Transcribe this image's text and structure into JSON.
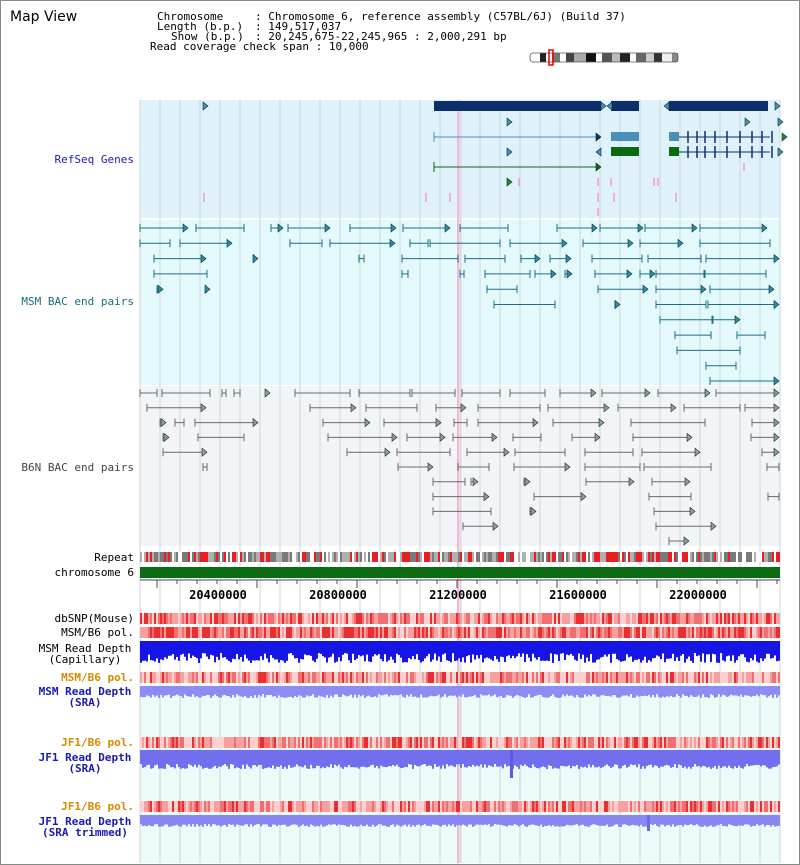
{
  "title": "Map View",
  "info": {
    "chromosome_label": "Chromosome",
    "chromosome_value": "Chromosome 6, reference assembly (C57BL/6J) (Build 37)",
    "length_label": "Length (b.p.)",
    "length_value": "149,517,037",
    "show_label": "Show (b.p.)",
    "show_value": "20,245,675-22,245,965 : 2,000,291 bp",
    "coverage_label": "Read coverage check span",
    "coverage_value": "10,000"
  },
  "tracks": {
    "refseq": "RefSeq Genes",
    "msm_bac": "MSM BAC end pairs",
    "b6n_bac": "B6N BAC end pairs",
    "repeat": "Repeat",
    "chromosome": "chromosome 6",
    "dbsnp": "dbSNP(Mouse)",
    "msm_b6_pol_1": "MSM/B6 pol.",
    "msm_depth_cap_1": "MSM Read Depth",
    "msm_depth_cap_2": "(Capillary)",
    "msm_b6_pol_2": "MSM/B6 pol.",
    "msm_depth_sra_1": "MSM Read Depth",
    "msm_depth_sra_2": "(SRA)",
    "jf1_b6_pol_1": "JF1/B6 pol.",
    "jf1_depth_sra_1": "JF1 Read Depth",
    "jf1_depth_sra_2": "(SRA)",
    "jf1_b6_pol_2": "JF1/B6 pol.",
    "jf1_depth_trim_1": "JF1 Read Depth",
    "jf1_depth_trim_2": "(SRA trimmed)"
  },
  "ruler": {
    "ticks": [
      "20400000",
      "20800000",
      "21200000",
      "21600000",
      "22000000"
    ]
  },
  "colors": {
    "refseq_bg": "#dff2fb",
    "msm_bg": "#e4f9fb",
    "b6n_bg": "#f2f4f8",
    "coverage_bg": "#ebfbf8",
    "gene_dark": "#0a2f6a",
    "gene_mid": "#4a8fb5",
    "gene_green": "#0a6a10",
    "msm_line": "#1a6f86",
    "b6n_line": "#6a6a6a",
    "chromosome_bar": "#0a6b12",
    "depth_blue": "#2020e8",
    "depth_light": "#8c8cf2",
    "pol_red": "#e83030",
    "label_blue": "#1b1bb0",
    "label_teal": "#127080",
    "label_orange": "#d88a00"
  }
}
